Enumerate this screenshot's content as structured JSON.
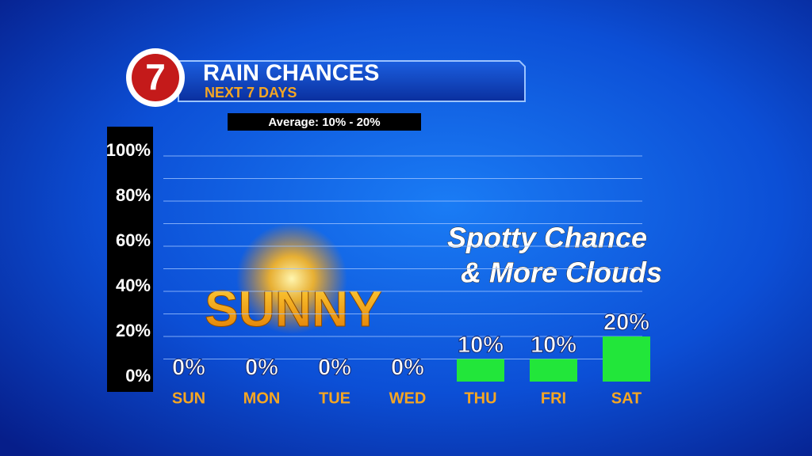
{
  "chart_data": {
    "type": "bar",
    "logo": "7",
    "title": "RAIN CHANCES",
    "subtitle": "NEXT 7 DAYS",
    "note": "Average: 10% - 20%",
    "annotations": [
      "SUNNY",
      "Spotty Chance",
      "& More Clouds"
    ],
    "categories": [
      "SUN",
      "MON",
      "TUE",
      "WED",
      "THU",
      "FRI",
      "SAT"
    ],
    "values": [
      0,
      0,
      0,
      0,
      10,
      10,
      20
    ],
    "value_labels": [
      "0%",
      "0%",
      "0%",
      "0%",
      "10%",
      "10%",
      "20%"
    ],
    "color": "#22e63a",
    "ylim": [
      0,
      100
    ],
    "yticks": [
      {
        "value": 0,
        "label": "0%"
      },
      {
        "value": 20,
        "label": "20%"
      },
      {
        "value": 40,
        "label": "40%"
      },
      {
        "value": 60,
        "label": "60%"
      },
      {
        "value": 80,
        "label": "80%"
      },
      {
        "value": 100,
        "label": "100%"
      }
    ],
    "grid": true
  }
}
